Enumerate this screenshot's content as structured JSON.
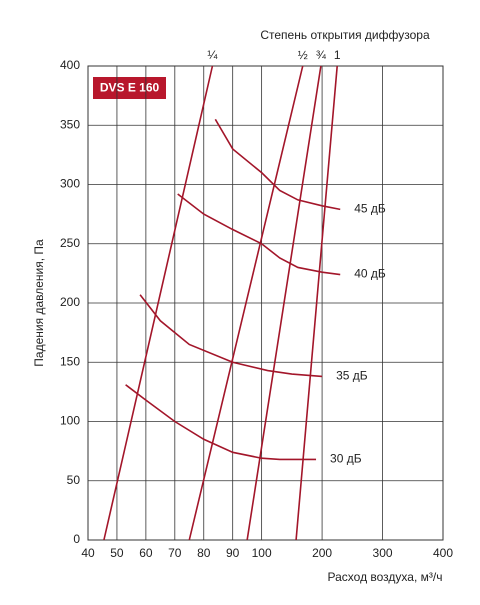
{
  "chart_data": {
    "type": "line",
    "title": "Степень открытия диффузора",
    "badge": "DVS E 160",
    "x_label": "Расход воздуха, м³/ч",
    "y_label": "Падения давления, Па",
    "xlim": [
      40,
      400
    ],
    "ylim": [
      0,
      400
    ],
    "xticks": [
      40,
      50,
      60,
      70,
      80,
      90,
      100,
      200,
      300,
      400
    ],
    "yticks": [
      0,
      50,
      100,
      150,
      200,
      250,
      300,
      350,
      400
    ],
    "grid": true,
    "series": [
      {
        "name": "¼",
        "color": "#a3162a",
        "x": [
          45.5,
          83
        ],
        "values": [
          0,
          400
        ]
      },
      {
        "name": "½",
        "color": "#a3162a",
        "x": [
          75,
          168
        ],
        "values": [
          0,
          400
        ]
      },
      {
        "name": "¾",
        "color": "#a3162a",
        "x": [
          95,
          198
        ],
        "values": [
          0,
          400
        ]
      },
      {
        "name": "1",
        "color": "#a3162a",
        "x": [
          157,
          225
        ],
        "values": [
          0,
          400
        ]
      },
      {
        "name": "45 дБ",
        "color": "#a3162a",
        "x": [
          84,
          90,
          100,
          130,
          160,
          200,
          230
        ],
        "values": [
          355,
          330,
          310,
          295,
          287,
          282,
          279
        ]
      },
      {
        "name": "40 дБ",
        "color": "#a3162a",
        "x": [
          71,
          80,
          90,
          100,
          130,
          160,
          200,
          230
        ],
        "values": [
          292,
          275,
          262,
          250,
          238,
          230,
          226,
          224
        ]
      },
      {
        "name": "35 дБ",
        "color": "#a3162a",
        "x": [
          58,
          65,
          75,
          90,
          110,
          150,
          200
        ],
        "values": [
          207,
          185,
          165,
          150,
          143,
          140,
          138
        ]
      },
      {
        "name": "30 дБ",
        "color": "#a3162a",
        "x": [
          53,
          60,
          70,
          80,
          90,
          100,
          130,
          190
        ],
        "values": [
          131,
          118,
          100,
          85,
          74,
          69,
          68,
          68
        ]
      }
    ]
  }
}
